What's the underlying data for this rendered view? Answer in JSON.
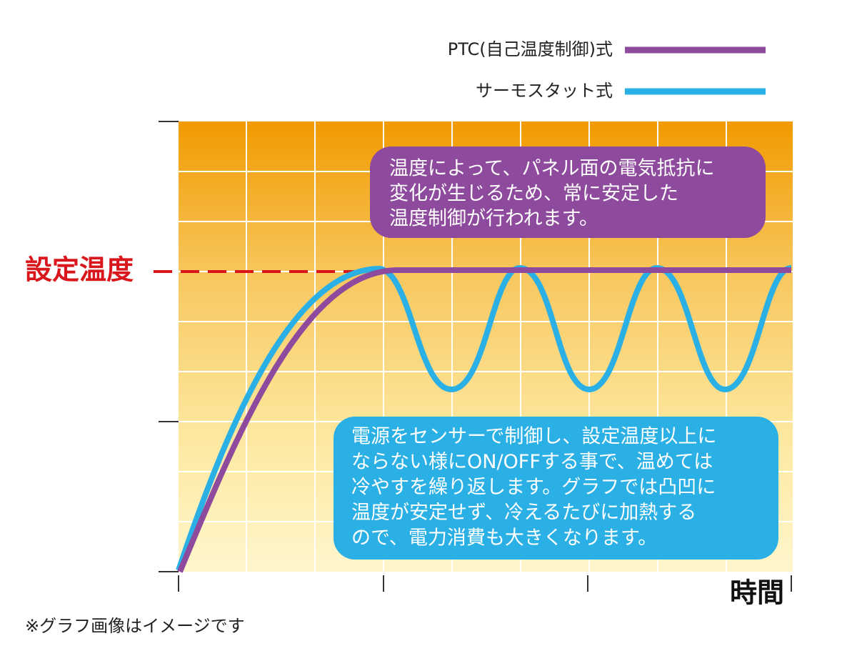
{
  "legend": [
    {
      "label": "PTC(自己温度制御)式"
    },
    {
      "label": "サーモスタット式"
    }
  ],
  "set_temperature_label": "設定温度",
  "x_axis_label": "時間",
  "ptc_note": {
    "lines": [
      "温度によって、パネル面の電気抵抗に",
      "変化が生じるため、常に安定した",
      "温度制御が行われます。"
    ]
  },
  "thermostat_note": {
    "lines": [
      "電源をセンサーで制御し、設定温度以上に",
      "ならない様にON/OFFする事で、温めては",
      "冷やすを繰り返します。グラフでは凸凹に",
      "温度が安定せず、冷えるたびに加熱する",
      "ので、電力消費も大きくなります。"
    ]
  },
  "footnote": "※グラフ画像はイメージです"
}
